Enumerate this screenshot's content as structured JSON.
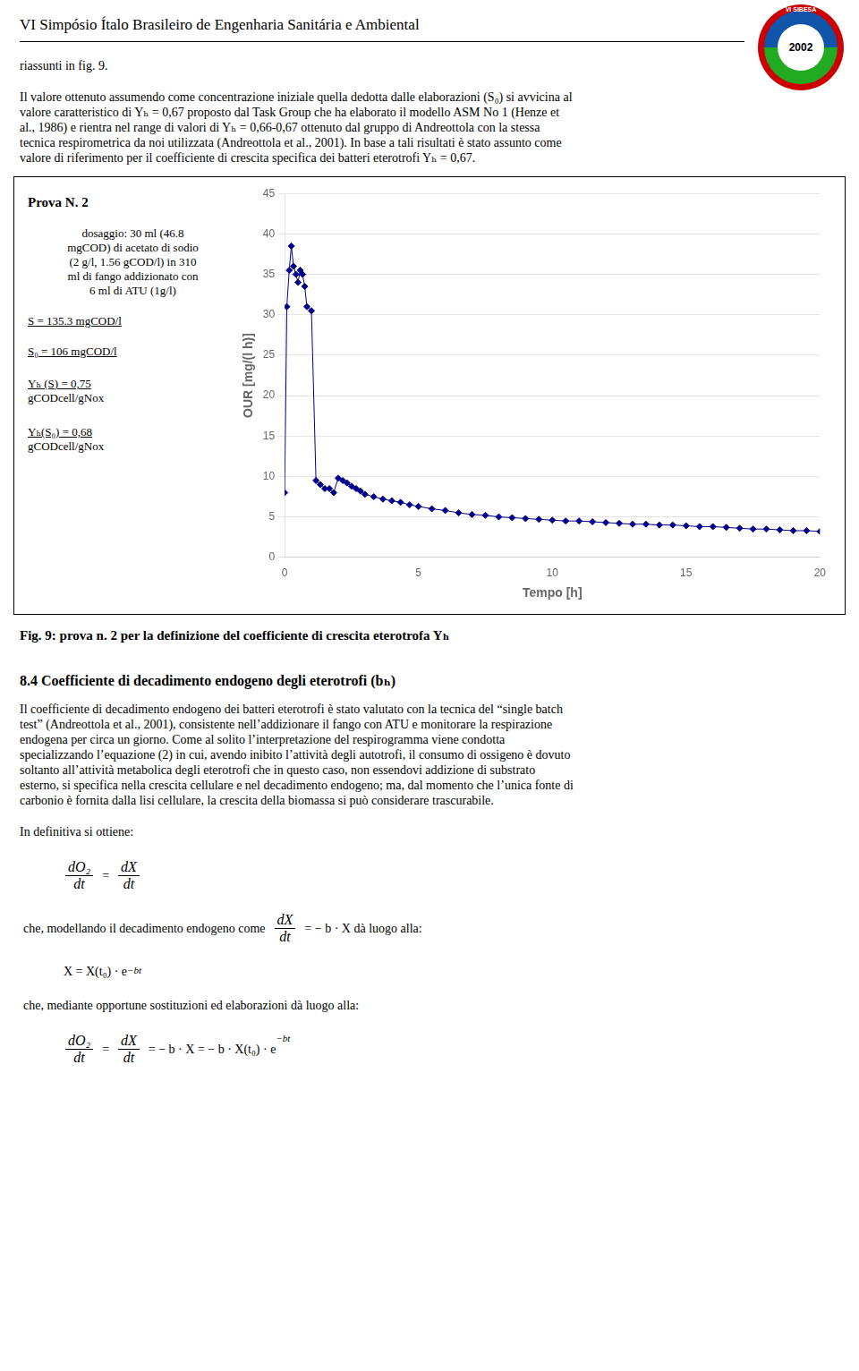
{
  "chart_data": {
    "type": "line",
    "title": "Fig. 9: prova n. 2 per la definizione del coefficiente di crescita eterotrofa Yₕ",
    "x_label": "Tempo [h]",
    "y_label": "OUR [mg/(l h)]",
    "x": [
      0.0,
      0.08,
      0.17,
      0.25,
      0.33,
      0.42,
      0.5,
      0.58,
      0.67,
      0.75,
      0.83,
      1.0,
      1.17,
      1.33,
      1.5,
      1.67,
      1.83,
      2.0,
      2.17,
      2.33,
      2.5,
      2.67,
      2.83,
      3.0,
      3.33,
      3.67,
      4.0,
      4.33,
      4.67,
      5.0,
      5.5,
      6.0,
      6.5,
      7.0,
      7.5,
      8.0,
      8.5,
      9.0,
      9.5,
      10.0,
      10.5,
      11.0,
      11.5,
      12.0,
      12.5,
      13.0,
      13.5,
      14.0,
      14.5,
      15.0,
      15.5,
      16.0,
      16.5,
      17.0,
      17.5,
      18.0,
      18.5,
      19.0,
      19.5,
      20.0
    ],
    "values": [
      8.0,
      31.0,
      35.5,
      38.5,
      36.0,
      35.0,
      34.0,
      35.5,
      35.0,
      33.5,
      31.0,
      30.5,
      9.5,
      9.0,
      8.5,
      8.5,
      8.0,
      9.8,
      9.5,
      9.2,
      8.8,
      8.5,
      8.2,
      7.8,
      7.5,
      7.2,
      7.0,
      6.8,
      6.5,
      6.3,
      6.0,
      5.8,
      5.5,
      5.3,
      5.2,
      5.0,
      4.9,
      4.8,
      4.7,
      4.6,
      4.5,
      4.5,
      4.4,
      4.3,
      4.2,
      4.1,
      4.1,
      4.0,
      4.0,
      3.9,
      3.8,
      3.8,
      3.7,
      3.6,
      3.5,
      3.5,
      3.4,
      3.3,
      3.3,
      3.2
    ],
    "color": "#00008B",
    "marker": "diamond",
    "line_style": "solid",
    "xlim": [
      0,
      20
    ],
    "ylim": [
      0,
      45
    ],
    "xticks": [
      0,
      5,
      10,
      15,
      20
    ],
    "yticks": [
      0,
      5,
      10,
      15,
      20,
      25,
      30,
      35,
      40,
      45
    ],
    "grid": "y",
    "annotations": [
      [
        "VI Simpósio Ítalo Brasileiro de Engenharia Sanitária e Ambiental",
        "VI SIBESA",
        "2002"
      ],
      [
        "riassunti in fig. 9."
      ],
      [
        "Il valore ottenuto assumendo come concentrazione iniziale quella dedotta dalle elaborazioni (S₀) si avvicina al",
        "valore caratteristico di  Yₕ = 0,67 proposto dal Task Group che ha elaborato il modello ASM No 1 (Henze et",
        "al., 1986) e rientra nel range di valori di Yₕ = 0,66-0,67 ottenuto dal gruppo di Andreottola con la stessa",
        "tecnica respirometrica da noi utilizzata (Andreottola et al., 2001). In base a tali risultati è stato assunto come",
        "valore di riferimento per il coefficiente di crescita specifica dei batteri eterotrofi  Yₕ = 0,67."
      ],
      [
        "Prova N. 2",
        "dosaggio: 30 ml (46.8",
        "mgCOD) di acetato di sodio",
        "(2 g/l, 1.56 gCOD/l) in 310",
        "ml di fango addizionato con",
        "6 ml di ATU (1g/l)",
        "S = 135.3 mgCOD/l",
        "S₀ = 106 mgCOD/l",
        "Yₕ (S) = 0,75",
        "gCODcell/gNox",
        "Yₕ(S₀) = 0,68",
        "gCODcell/gNox"
      ],
      [
        "8.4 Coefficiente di decadimento endogeno degli eterotrofi (bₕ)"
      ],
      [
        "Il coefficiente di decadimento endogeno dei batteri eterotrofi  è stato valutato con la tecnica del “single batch",
        "test” (Andreottola et al., 2001), consistente nell’addizionare il fango con ATU e monitorare la respirazione",
        "endogena per circa un giorno. Come al solito l’interpretazione del respirogramma viene condotta",
        "specializzando l’equazione (2) in cui, avendo inibito l’attività degli autotrofi, il consumo di ossigeno è dovuto",
        "soltanto all’attività metabolica degli eterotrofi che in questo caso, non essendovi addizione di substrato",
        "esterno, si specifica nella crescita cellulare e nel decadimento endogeno; ma, dal momento che l’unica fonte di",
        "carbonio è fornita dalla lisi cellulare, la crescita della biomassa si può considerare trascurabile."
      ],
      [
        "In definitiva si ottiene:"
      ],
      [
        [
          [
            "dO₂",
            "dt"
          ],
          "=",
          [
            "dX",
            "dt"
          ]
        ],
        [
          "che, modellando il decadimento endogeno come",
          [
            "dX",
            "dt"
          ],
          "= − b · X  dà luogo alla:"
        ],
        [
          "X = X(t₀) · e",
          [
            "−bt"
          ]
        ],
        [
          "che, mediante opportune sostituzioni ed elaborazioni dà luogo alla:"
        ],
        [
          [
            "dO₂",
            "dt"
          ],
          "=",
          [
            "dX",
            "dt"
          ],
          "= − b · X = − b · X(t₀) · e",
          [
            "−bt"
          ]
        ]
      ]
    ]
  }
}
